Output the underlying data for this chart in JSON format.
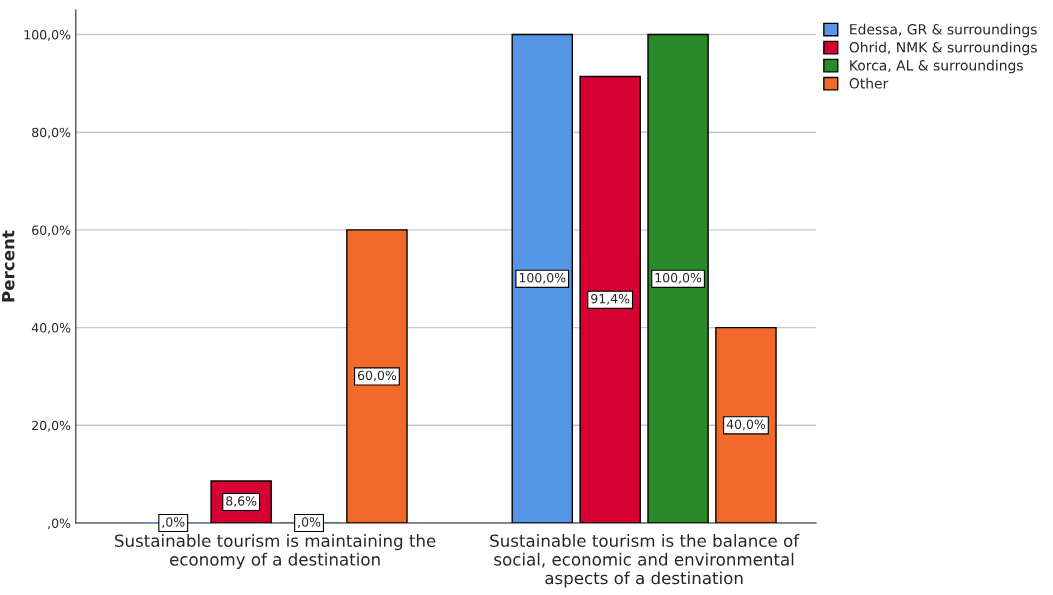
{
  "chart_data": {
    "type": "bar",
    "ylabel": "Percent",
    "categories": [
      "Sustainable tourism is maintaining the\neconomy of a destination",
      "Sustainable tourism is the balance of\nsocial, economic and environmental\naspects of a destination"
    ],
    "series": [
      {
        "name": "Edessa, GR & surroundings",
        "color": "#5596e6",
        "values": [
          0,
          100
        ],
        "value_labels": [
          ",0%",
          "100,0%"
        ]
      },
      {
        "name": "Ohrid, NMK & surroundings",
        "color": "#d60032",
        "values": [
          8.6,
          91.4
        ],
        "value_labels": [
          "8,6%",
          "91,4%"
        ]
      },
      {
        "name": "Korca, AL & surroundings",
        "color": "#2a8a2a",
        "values": [
          0,
          100
        ],
        "value_labels": [
          ",0%",
          "100,0%"
        ]
      },
      {
        "name": "Other",
        "color": "#f26a2a",
        "values": [
          60,
          40
        ],
        "value_labels": [
          "60,0%",
          "40,0%"
        ]
      }
    ],
    "ylim": [
      0,
      105
    ],
    "yticks": [
      {
        "value": 0,
        "label": ",0%"
      },
      {
        "value": 20,
        "label": "20,0%"
      },
      {
        "value": 40,
        "label": "40,0%"
      },
      {
        "value": 60,
        "label": "60,0%"
      },
      {
        "value": 80,
        "label": "80,0%"
      },
      {
        "value": 100,
        "label": "100,0%"
      }
    ],
    "grid": "y",
    "legend": "top right"
  }
}
